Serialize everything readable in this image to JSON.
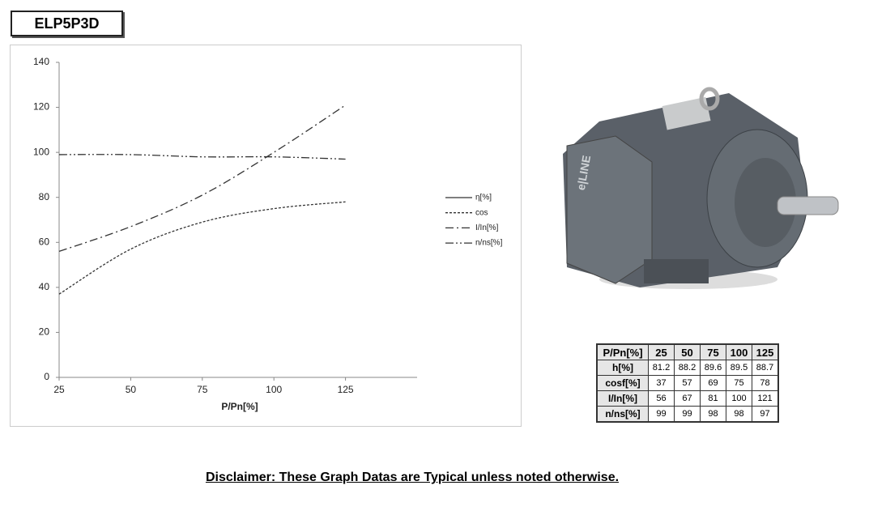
{
  "header": {
    "title": "ELP5P3D"
  },
  "chart_data": {
    "type": "line",
    "xlabel": "P/Pn[%]",
    "x": [
      25,
      50,
      75,
      100,
      125
    ],
    "xlim": [
      25,
      150
    ],
    "xticks": [
      25,
      50,
      75,
      100,
      125
    ],
    "ylim": [
      0,
      140
    ],
    "yticks": [
      0,
      20,
      40,
      60,
      80,
      100,
      120,
      140
    ],
    "grid": false,
    "legend": "right",
    "series": [
      {
        "name": "η[%]",
        "color": "#333333",
        "dash": "solid",
        "values": [
          null,
          null,
          null,
          null,
          null
        ]
      },
      {
        "name": "cos",
        "color": "#333333",
        "dash": "dotted",
        "values": [
          37,
          57,
          69,
          75,
          78
        ]
      },
      {
        "name": "I/In[%]",
        "color": "#333333",
        "dash": "dash-dot",
        "values": [
          56,
          67,
          81,
          100,
          121
        ]
      },
      {
        "name": "n/ns[%]",
        "color": "#333333",
        "dash": "dash-dot-dot",
        "values": [
          99,
          99,
          98,
          98,
          97
        ]
      }
    ]
  },
  "photo": {
    "brand": "e|LINE"
  },
  "table": {
    "header": [
      "P/Pn[%]",
      "25",
      "50",
      "75",
      "100",
      "125"
    ],
    "rows": [
      [
        "h[%]",
        "81.2",
        "88.2",
        "89.6",
        "89.5",
        "88.7"
      ],
      [
        "cosf[%]",
        "37",
        "57",
        "69",
        "75",
        "78"
      ],
      [
        "I/In[%]",
        "56",
        "67",
        "81",
        "100",
        "121"
      ],
      [
        "n/ns[%]",
        "99",
        "99",
        "98",
        "98",
        "97"
      ]
    ]
  },
  "footer": {
    "disclaimer": "Disclaimer: These Graph Datas are Typical unless noted otherwise."
  }
}
